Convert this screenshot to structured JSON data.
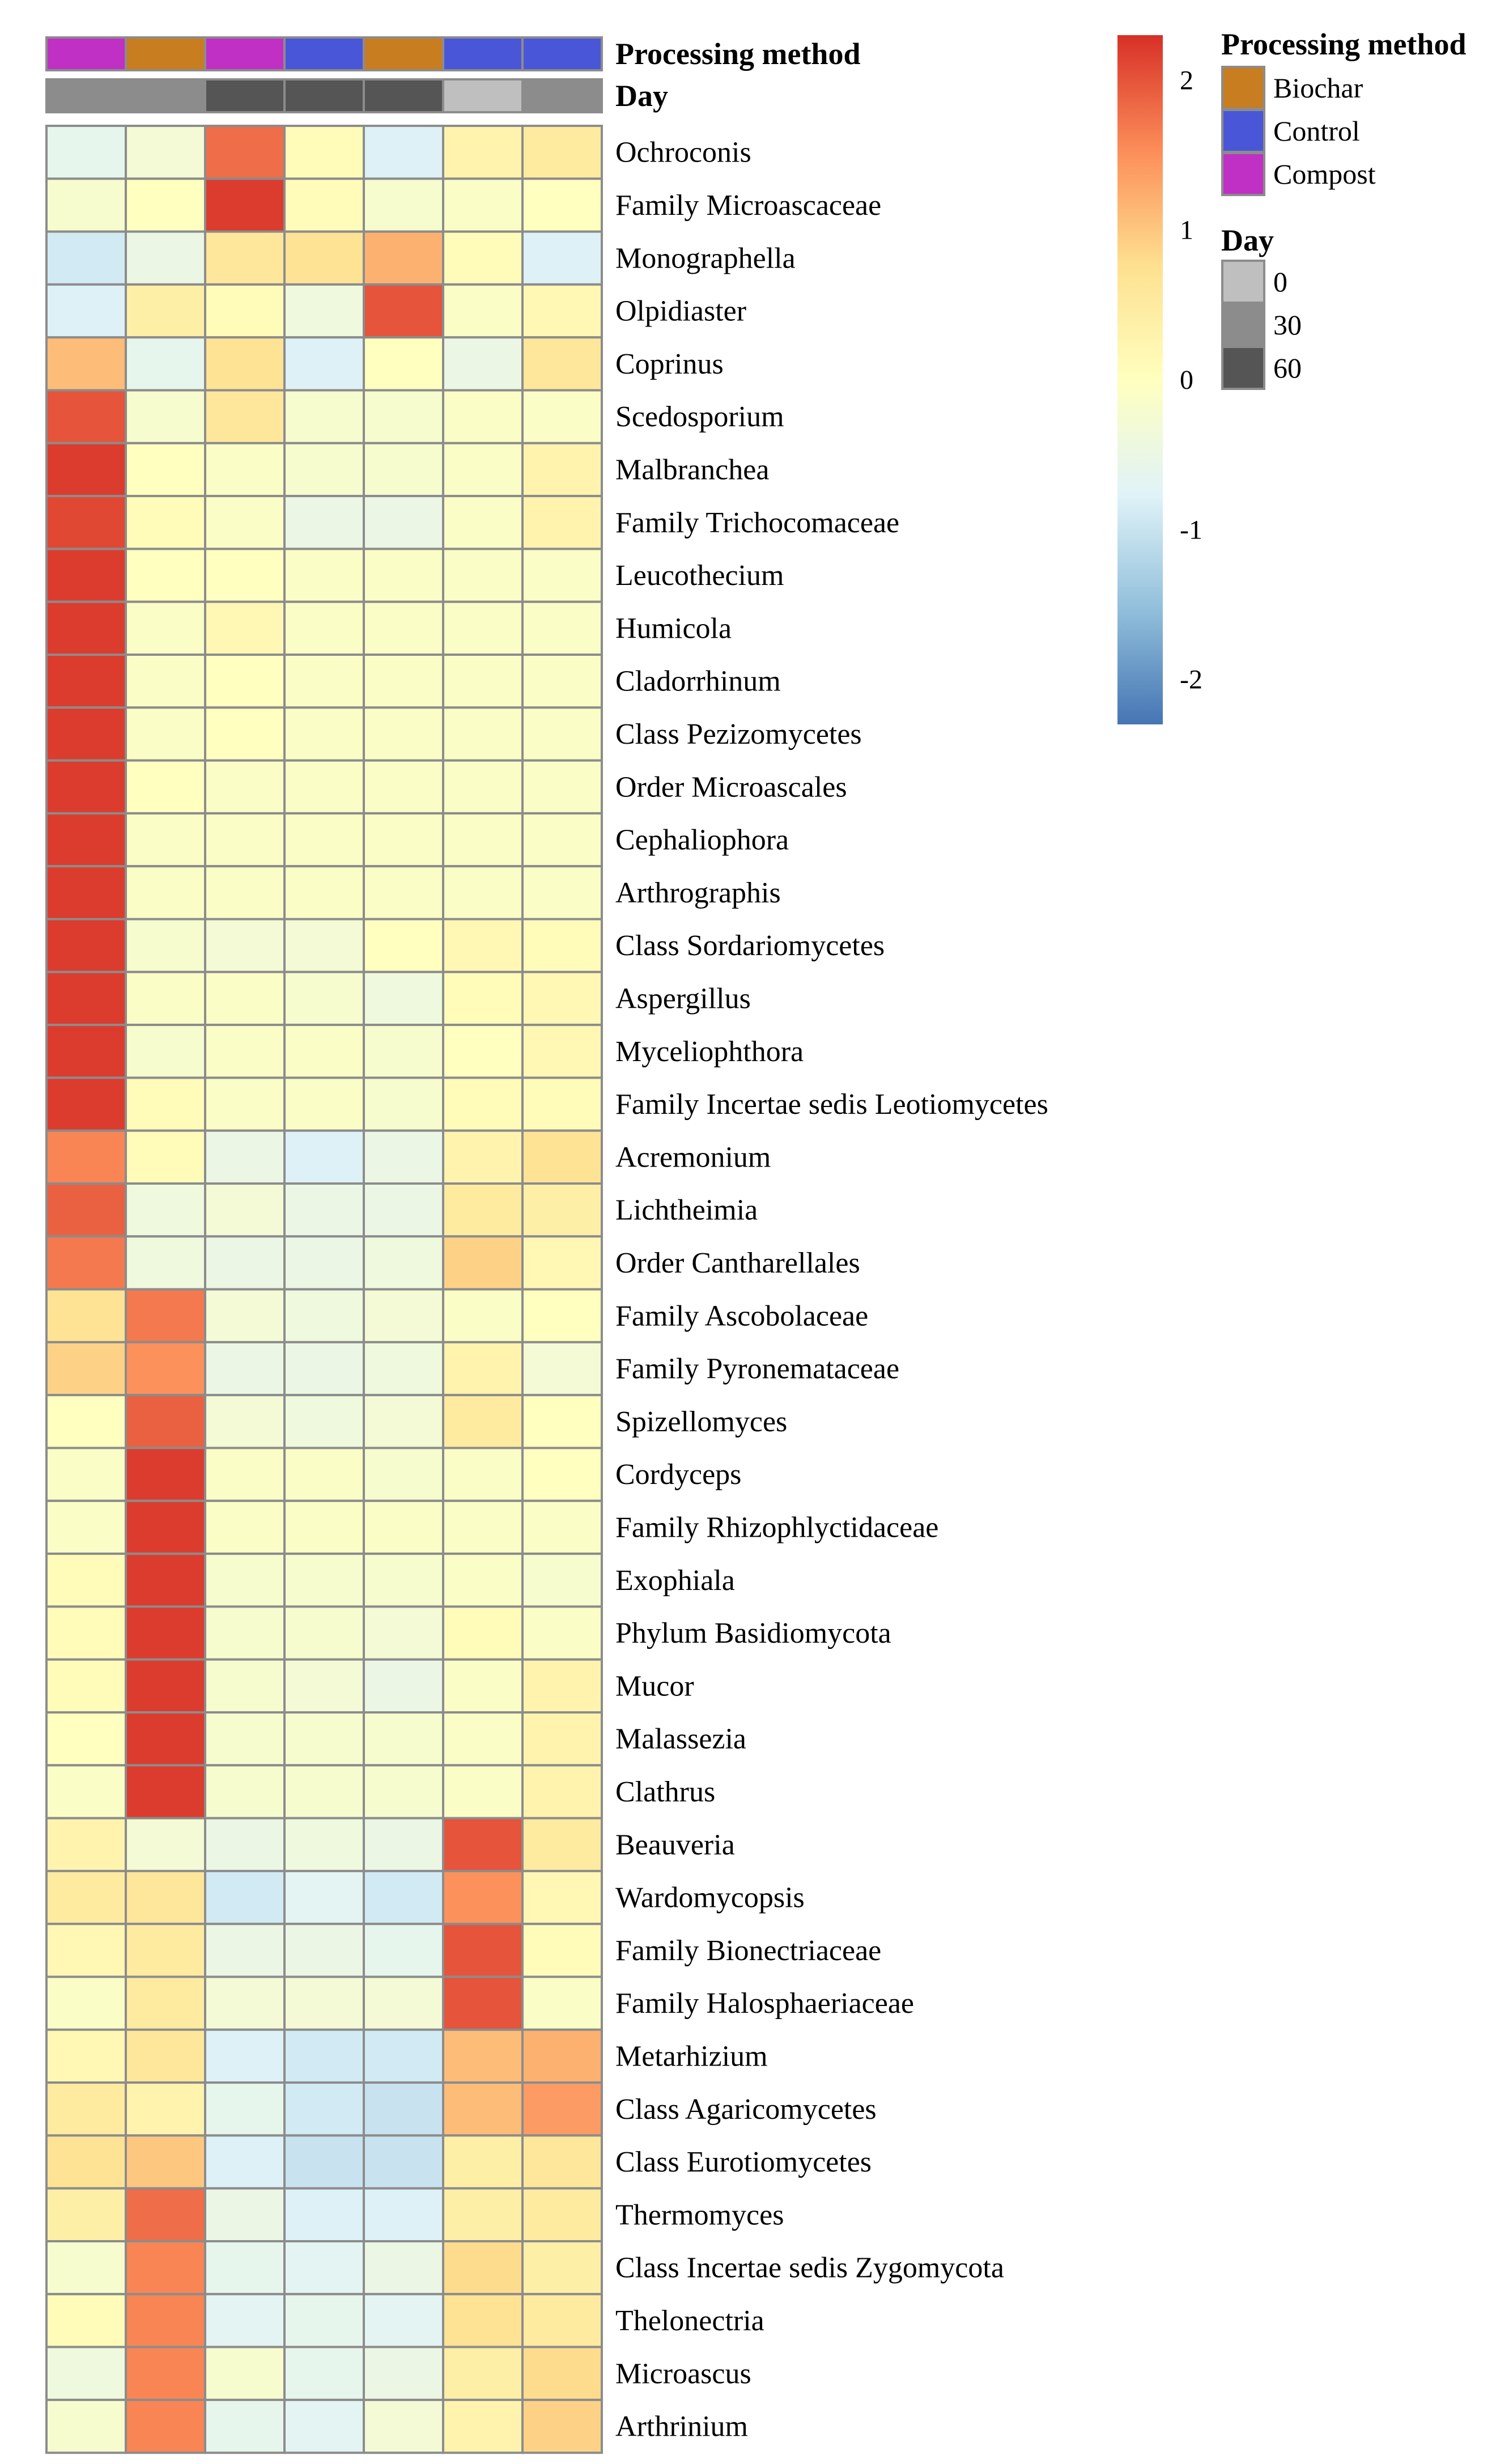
{
  "chart_data": {
    "type": "heatmap",
    "title": "",
    "column_annotations": {
      "processing_method": {
        "label": "Processing method",
        "values": [
          "Compost",
          "Biochar",
          "Compost",
          "Control",
          "Biochar",
          "Control",
          "Control"
        ]
      },
      "day": {
        "label": "Day",
        "values": [
          "30",
          "30",
          "60",
          "60",
          "60",
          "0",
          "30"
        ]
      }
    },
    "rows": [
      "Ochroconis",
      "Family Microascaceae",
      "Monographella",
      "Olpidiaster",
      "Coprinus",
      "Scedosporium",
      "Malbranchea",
      "Family Trichocomaceae",
      "Leucothecium",
      "Humicola",
      "Cladorrhinum",
      "Class Pezizomycetes",
      "Order Microascales",
      "Cephaliophora",
      "Arthrographis",
      "Class Sordariomycetes",
      "Aspergillus",
      "Myceliophthora",
      "Family Incertae sedis Leotiomycetes",
      "Acremonium",
      "Lichtheimia",
      "Order Cantharellales",
      "Family Ascobolaceae",
      "Family Pyronemataceae",
      "Spizellomyces",
      "Cordyceps",
      "Family Rhizophlyctidaceae",
      "Exophiala",
      "Phylum Basidiomycota",
      "Mucor",
      "Malassezia",
      "Clathrus",
      "Beauveria",
      "Wardomycopsis",
      "Family Bionectriaceae",
      "Family Halosphaeriaceae",
      "Metarhizium",
      "Class Agaricomycetes",
      "Class Eurotiomycetes",
      "Thermomyces",
      "Class Incertae sedis Zygomycota",
      "Thelonectria",
      "Microascus",
      "Arthrinium"
    ],
    "values": [
      [
        -0.6,
        -0.3,
        1.8,
        0.1,
        -0.8,
        0.3,
        0.5
      ],
      [
        -0.2,
        0.0,
        2.2,
        0.1,
        -0.2,
        -0.1,
        0.0
      ],
      [
        -0.9,
        -0.5,
        0.6,
        0.7,
        1.2,
        0.1,
        -0.8
      ],
      [
        -0.8,
        0.4,
        0.1,
        -0.4,
        2.0,
        -0.1,
        0.2
      ],
      [
        1.1,
        -0.6,
        0.7,
        -0.8,
        0.0,
        -0.5,
        0.6
      ],
      [
        2.0,
        -0.2,
        0.6,
        -0.2,
        -0.2,
        -0.1,
        -0.1
      ],
      [
        2.2,
        0.0,
        -0.1,
        -0.2,
        -0.2,
        -0.1,
        0.3
      ],
      [
        2.1,
        0.1,
        -0.1,
        -0.5,
        -0.5,
        -0.1,
        0.3
      ],
      [
        2.2,
        0.0,
        0.0,
        -0.1,
        -0.1,
        -0.1,
        -0.1
      ],
      [
        2.2,
        -0.1,
        0.2,
        -0.1,
        -0.1,
        -0.1,
        -0.1
      ],
      [
        2.2,
        -0.1,
        0.0,
        -0.1,
        -0.1,
        -0.1,
        -0.1
      ],
      [
        2.2,
        -0.1,
        0.0,
        -0.1,
        -0.1,
        -0.1,
        -0.1
      ],
      [
        2.2,
        0.0,
        -0.1,
        -0.1,
        -0.1,
        -0.1,
        -0.1
      ],
      [
        2.2,
        -0.1,
        -0.1,
        -0.1,
        -0.1,
        -0.1,
        -0.1
      ],
      [
        2.2,
        -0.1,
        -0.1,
        -0.1,
        -0.1,
        -0.1,
        -0.1
      ],
      [
        2.2,
        -0.2,
        -0.3,
        -0.3,
        0.0,
        0.2,
        0.1
      ],
      [
        2.2,
        -0.1,
        -0.1,
        -0.2,
        -0.4,
        0.1,
        0.2
      ],
      [
        2.2,
        -0.2,
        -0.1,
        -0.1,
        -0.2,
        0.0,
        0.2
      ],
      [
        2.2,
        0.1,
        -0.1,
        -0.1,
        -0.2,
        0.1,
        0.1
      ],
      [
        1.6,
        0.1,
        -0.5,
        -0.8,
        -0.5,
        0.3,
        0.7
      ],
      [
        1.9,
        -0.4,
        -0.3,
        -0.5,
        -0.5,
        0.5,
        0.4
      ],
      [
        1.7,
        -0.4,
        -0.5,
        -0.5,
        -0.4,
        0.9,
        0.2
      ],
      [
        0.7,
        1.7,
        -0.3,
        -0.4,
        -0.3,
        -0.1,
        0.0
      ],
      [
        0.9,
        1.5,
        -0.5,
        -0.5,
        -0.4,
        0.3,
        -0.3
      ],
      [
        0.0,
        1.9,
        -0.3,
        -0.4,
        -0.3,
        0.5,
        0.0
      ],
      [
        -0.1,
        2.2,
        -0.1,
        -0.1,
        -0.2,
        -0.1,
        0.0
      ],
      [
        -0.1,
        2.2,
        -0.1,
        -0.1,
        -0.1,
        -0.1,
        -0.1
      ],
      [
        0.1,
        2.2,
        -0.2,
        -0.2,
        -0.2,
        -0.1,
        -0.2
      ],
      [
        0.1,
        2.2,
        -0.2,
        -0.2,
        -0.3,
        0.1,
        -0.1
      ],
      [
        0.1,
        2.2,
        -0.2,
        -0.3,
        -0.5,
        -0.1,
        0.3
      ],
      [
        0.0,
        2.2,
        -0.2,
        -0.2,
        -0.2,
        -0.1,
        0.3
      ],
      [
        -0.1,
        2.2,
        -0.2,
        -0.2,
        -0.2,
        -0.1,
        0.3
      ],
      [
        0.3,
        -0.3,
        -0.5,
        -0.4,
        -0.5,
        2.0,
        0.5
      ],
      [
        0.5,
        0.6,
        -0.9,
        -0.7,
        -0.9,
        1.5,
        0.2
      ],
      [
        0.2,
        0.5,
        -0.5,
        -0.5,
        -0.6,
        2.0,
        0.1
      ],
      [
        -0.1,
        0.5,
        -0.3,
        -0.3,
        -0.3,
        2.0,
        -0.1
      ],
      [
        0.2,
        0.6,
        -0.8,
        -0.9,
        -0.9,
        1.1,
        1.2
      ],
      [
        0.5,
        0.3,
        -0.6,
        -0.9,
        -1.0,
        1.1,
        1.4
      ],
      [
        0.7,
        1.0,
        -0.8,
        -1.0,
        -1.0,
        0.4,
        0.6
      ],
      [
        0.4,
        1.8,
        -0.5,
        -0.8,
        -0.8,
        0.4,
        0.5
      ],
      [
        -0.2,
        1.6,
        -0.6,
        -0.7,
        -0.5,
        0.8,
        0.4
      ],
      [
        0.1,
        1.6,
        -0.7,
        -0.6,
        -0.7,
        0.7,
        0.5
      ],
      [
        -0.4,
        1.6,
        -0.2,
        -0.6,
        -0.5,
        0.4,
        0.8
      ],
      [
        -0.2,
        1.6,
        -0.6,
        -0.7,
        -0.3,
        0.3,
        0.9
      ]
    ],
    "color_scale": {
      "min": -2.3,
      "max": 2.3,
      "ticks": [
        "2",
        "1",
        "0",
        "-1",
        "-2"
      ],
      "tick_values": [
        2,
        1,
        0,
        -1,
        -2
      ],
      "colors": [
        "#4575b4",
        "#91bfdb",
        "#e0f3f8",
        "#ffffbf",
        "#fee090",
        "#fc8d59",
        "#d73027"
      ]
    },
    "legends": {
      "processing_method": {
        "title": "Processing method",
        "items": [
          {
            "label": "Biochar",
            "color": "#c87d20"
          },
          {
            "label": "Control",
            "color": "#4a56d8"
          },
          {
            "label": "Compost",
            "color": "#c030c4"
          }
        ]
      },
      "day": {
        "title": "Day",
        "items": [
          {
            "label": "0",
            "color": "#bfbfbf"
          },
          {
            "label": "30",
            "color": "#8c8c8c"
          },
          {
            "label": "60",
            "color": "#555555"
          }
        ]
      }
    }
  }
}
